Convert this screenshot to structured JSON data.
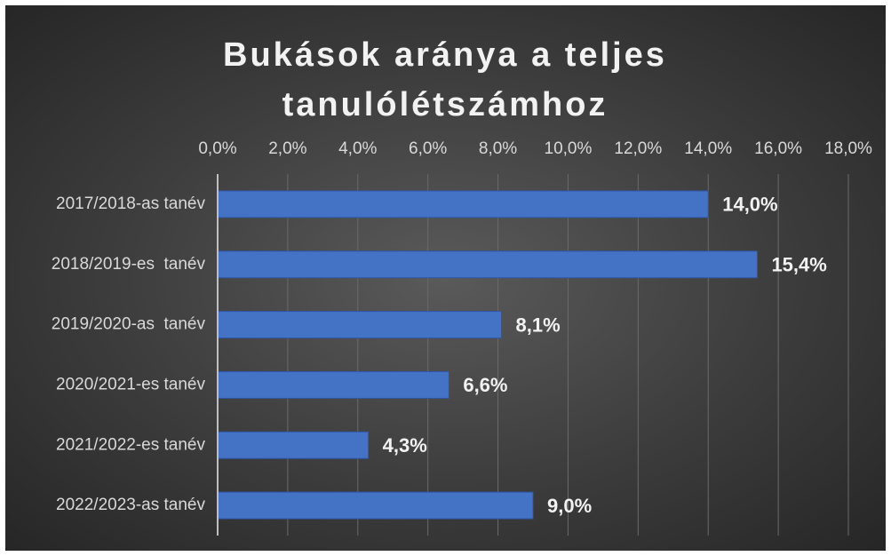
{
  "chart_data": {
    "type": "bar",
    "orientation": "horizontal",
    "title": "Bukások aránya a teljes tanulólétszámhoz",
    "categories": [
      "2017/2018-as tanév",
      "2018/2019-es  tanév",
      "2019/2020-as  tanév",
      "2020/2021-es tanév",
      "2021/2022-es tanév",
      "2022/2023-as tanév"
    ],
    "values": [
      14.0,
      15.4,
      8.1,
      6.6,
      4.3,
      9.0
    ],
    "value_labels": [
      "14,0%",
      "15,4%",
      "8,1%",
      "6,6%",
      "4,3%",
      "9,0%"
    ],
    "color": "#4472c4",
    "xlim": [
      0,
      18
    ],
    "xticks": [
      {
        "value": 0,
        "label": "0,0%"
      },
      {
        "value": 2,
        "label": "2,0%"
      },
      {
        "value": 4,
        "label": "4,0%"
      },
      {
        "value": 6,
        "label": "6,0%"
      },
      {
        "value": 8,
        "label": "8,0%"
      },
      {
        "value": 10,
        "label": "10,0%"
      },
      {
        "value": 12,
        "label": "12,0%"
      },
      {
        "value": 14,
        "label": "14,0%"
      },
      {
        "value": 16,
        "label": "16,0%"
      },
      {
        "value": 18,
        "label": "18,0%"
      }
    ],
    "grid": true
  }
}
